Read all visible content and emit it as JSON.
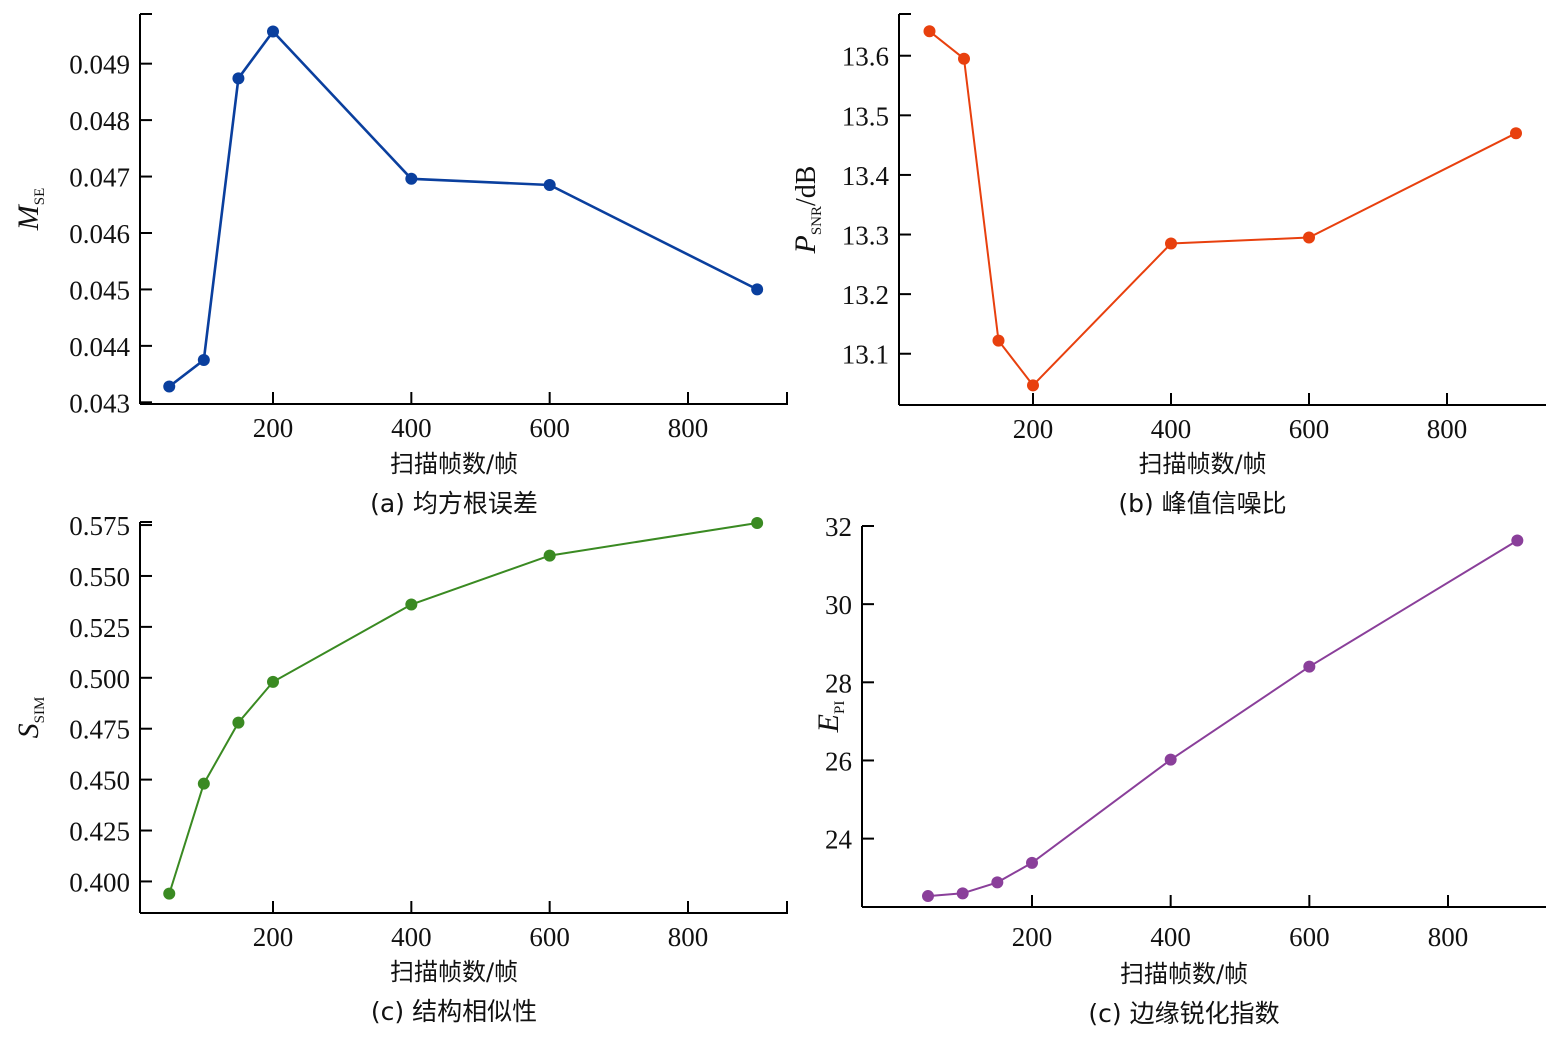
{
  "chart_data": [
    {
      "type": "line",
      "id": "a",
      "caption": "(a) 均方根误差",
      "xlabel": "扫描帧数/帧",
      "ylabel_main": "M",
      "ylabel_sub": "SE",
      "ylabel_suffix": "",
      "color": "#0a3f9e",
      "x": [
        50,
        100,
        150,
        200,
        400,
        600,
        900
      ],
      "y": [
        0.04328,
        0.04375,
        0.04874,
        0.04957,
        0.04696,
        0.04685,
        0.045
      ],
      "xlim": [
        0,
        945
      ],
      "ylim": [
        0.04297,
        0.04988
      ],
      "xticks": [
        200,
        400,
        600,
        800
      ],
      "xtick_labels": [
        "200",
        "400",
        "600",
        "800"
      ],
      "yticks": [
        0.043,
        0.044,
        0.045,
        0.046,
        0.047,
        0.048,
        0.049
      ],
      "ytick_labels": [
        "0.043",
        "0.044",
        "0.045",
        "0.046",
        "0.047",
        "0.048",
        "0.049"
      ],
      "grid": false
    },
    {
      "type": "line",
      "id": "b",
      "caption": "(b) 峰值信噪比",
      "xlabel": "扫描帧数/帧",
      "ylabel_main": "P",
      "ylabel_sub": "SNR",
      "ylabel_suffix": "/dB",
      "color": "#e8400e",
      "x": [
        50,
        100,
        150,
        200,
        400,
        600,
        900
      ],
      "y": [
        13.641,
        13.595,
        13.122,
        13.047,
        13.285,
        13.295,
        13.47
      ],
      "xlim": [
        0,
        945
      ],
      "ylim": [
        13.014,
        13.67
      ],
      "xticks": [
        200,
        400,
        600,
        800
      ],
      "xtick_labels": [
        "200",
        "400",
        "600",
        "800"
      ],
      "yticks": [
        13.1,
        13.2,
        13.3,
        13.4,
        13.5,
        13.6
      ],
      "ytick_labels": [
        "13.1",
        "13.2",
        "13.3",
        "13.4",
        "13.5",
        "13.6"
      ],
      "grid": false
    },
    {
      "type": "line",
      "id": "c",
      "caption": "(c) 结构相似性",
      "xlabel": "扫描帧数/帧",
      "ylabel_main": "S",
      "ylabel_sub": "SIM",
      "ylabel_suffix": "",
      "color": "#3a8a22",
      "x": [
        50,
        100,
        150,
        200,
        400,
        600,
        900
      ],
      "y": [
        0.394,
        0.448,
        0.478,
        0.498,
        0.536,
        0.56,
        0.576
      ],
      "xlim": [
        0,
        945
      ],
      "ylim": [
        0.3845,
        0.5765
      ],
      "xticks": [
        200,
        400,
        600,
        800
      ],
      "xtick_labels": [
        "200",
        "400",
        "600",
        "800"
      ],
      "yticks": [
        0.4,
        0.425,
        0.45,
        0.475,
        0.5,
        0.525,
        0.55,
        0.575
      ],
      "ytick_labels": [
        "0.400",
        "0.425",
        "0.450",
        "0.475",
        "0.500",
        "0.525",
        "0.550",
        "0.575"
      ],
      "grid": false
    },
    {
      "type": "line",
      "id": "d",
      "caption": "(c) 边缘锐化指数",
      "xlabel": "扫描帧数/帧",
      "ylabel_main": "E",
      "ylabel_sub": "PI",
      "ylabel_suffix": "",
      "color": "#8a3f9a",
      "x": [
        50,
        100,
        150,
        200,
        400,
        600,
        900
      ],
      "y": [
        22.53,
        22.6,
        22.88,
        23.38,
        26.02,
        28.4,
        31.63
      ],
      "xlim": [
        0,
        945
      ],
      "ylim": [
        22.25,
        32.0
      ],
      "xticks": [
        200,
        400,
        600,
        800
      ],
      "xtick_labels": [
        "200",
        "400",
        "600",
        "800"
      ],
      "yticks": [
        24,
        26,
        28,
        30,
        32
      ],
      "ytick_labels": [
        "24",
        "26",
        "28",
        "30",
        "32"
      ],
      "grid": false
    }
  ]
}
